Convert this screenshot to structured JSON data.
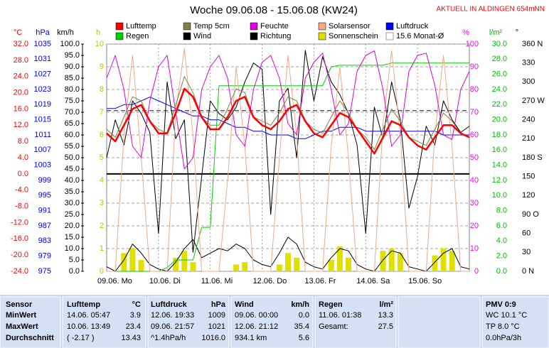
{
  "chart_data": {
    "type": "line",
    "title": "Woche 09.06.08 - 15.06.08 (KW24)",
    "subtitle": "AKTUELL IN ALDINGEN 654mNN",
    "x": [
      0,
      4,
      8,
      12,
      16,
      20,
      24,
      28,
      32,
      36,
      40,
      44,
      48,
      52,
      56,
      60,
      64,
      68,
      72,
      76,
      80,
      84,
      88,
      92,
      96,
      100,
      104,
      108,
      112,
      116,
      120,
      124,
      128,
      132,
      136,
      140,
      144,
      148,
      152,
      156,
      160,
      164,
      168
    ],
    "xlim": [
      0,
      168
    ],
    "xticks": [
      {
        "value": 0,
        "label": "09.06. Mo"
      },
      {
        "value": 24,
        "label": "10.06. Di"
      },
      {
        "value": 48,
        "label": "11.06. Mi"
      },
      {
        "value": 72,
        "label": "12.06. Do"
      },
      {
        "value": 96,
        "label": "13.06. Fr"
      },
      {
        "value": 120,
        "label": "14.06. Sa"
      },
      {
        "value": 144,
        "label": "15.06. So"
      }
    ],
    "grid": true,
    "axes": [
      {
        "unit": "°C",
        "color": "#ff0000",
        "lim": [
          -24,
          32
        ],
        "ticks": [
          {
            "value": 32,
            "label": "32.0"
          },
          {
            "value": 28,
            "label": "28.0"
          },
          {
            "value": 24,
            "label": "24.0"
          },
          {
            "value": 20,
            "label": "20.0"
          },
          {
            "value": 16,
            "label": "16.0"
          },
          {
            "value": 12,
            "label": "12.0"
          },
          {
            "value": 8,
            "label": "8.0"
          },
          {
            "value": 4,
            "label": "4.0"
          },
          {
            "value": 0,
            "label": "0.0"
          },
          {
            "value": -4,
            "label": "-4.0"
          },
          {
            "value": -8,
            "label": "-8.0"
          },
          {
            "value": -12,
            "label": "-12.0"
          },
          {
            "value": -16,
            "label": "-16.0"
          },
          {
            "value": -20,
            "label": "-20.0"
          },
          {
            "value": -24,
            "label": "-24.0"
          }
        ]
      },
      {
        "unit": "hPa",
        "color": "#0000ff",
        "lim": [
          975,
          1035
        ],
        "ticks": [
          1035,
          1031,
          1027,
          1023,
          1019,
          1015,
          1011,
          1007,
          1003,
          999,
          995,
          991,
          987,
          983,
          979,
          975
        ]
      },
      {
        "unit": "km/h",
        "color": "#000000",
        "lim": [
          0,
          100
        ],
        "ticks": [
          {
            "value": 100,
            "label": "100.0"
          },
          {
            "value": 95,
            "label": "95.0"
          },
          {
            "value": 90,
            "label": "90.0"
          },
          {
            "value": 85,
            "label": "85.0"
          },
          {
            "value": 80,
            "label": "80.0"
          },
          {
            "value": 75,
            "label": "75.0"
          },
          {
            "value": 70,
            "label": "70.0"
          },
          {
            "value": 65,
            "label": "65.0"
          },
          {
            "value": 60,
            "label": "60.0"
          },
          {
            "value": 55,
            "label": "55.0"
          },
          {
            "value": 50,
            "label": "50.0"
          },
          {
            "value": 45,
            "label": "45.0"
          },
          {
            "value": 40,
            "label": "40.0"
          },
          {
            "value": 35,
            "label": "35.0"
          },
          {
            "value": 30,
            "label": "30.0"
          },
          {
            "value": 25,
            "label": "25.0"
          },
          {
            "value": 20,
            "label": "20.0"
          },
          {
            "value": 15,
            "label": "15.0"
          },
          {
            "value": 10,
            "label": "10.0"
          },
          {
            "value": 5,
            "label": "5.0"
          },
          {
            "value": 0,
            "label": "0.0"
          }
        ]
      },
      {
        "unit": "h",
        "color": "#c0c000",
        "lim": [
          0,
          10
        ],
        "ticks": [
          10,
          9,
          8,
          7,
          6,
          5,
          4,
          3,
          2,
          1,
          0
        ]
      },
      {
        "unit": "%",
        "color": "#ff00ff",
        "lim": [
          0,
          100
        ],
        "ticks": [
          100,
          90,
          80,
          70,
          60,
          50,
          40,
          30,
          20,
          10,
          0
        ]
      },
      {
        "unit": "l/m²",
        "color": "#00c000",
        "lim": [
          0,
          30
        ],
        "ticks": [
          {
            "value": 30,
            "label": "30.0"
          },
          {
            "value": 28,
            "label": "28.0"
          },
          {
            "value": 26,
            "label": "26.0"
          },
          {
            "value": 24,
            "label": "24.0"
          },
          {
            "value": 22,
            "label": "22.0"
          },
          {
            "value": 20,
            "label": "20.0"
          },
          {
            "value": 18,
            "label": "18.0"
          },
          {
            "value": 16,
            "label": "16.0"
          },
          {
            "value": 14,
            "label": "14.0"
          },
          {
            "value": 12,
            "label": "12.0"
          },
          {
            "value": 10,
            "label": "10.0"
          },
          {
            "value": 8,
            "label": "8.0"
          },
          {
            "value": 6,
            "label": "6.0"
          },
          {
            "value": 4,
            "label": "4.0"
          },
          {
            "value": 2,
            "label": "2.0"
          },
          {
            "value": 0,
            "label": "0.0"
          }
        ]
      },
      {
        "unit": "°",
        "color": "#000000",
        "lim": [
          0,
          360
        ],
        "ticks": [
          {
            "value": 360,
            "label": "360 N"
          },
          330,
          300,
          {
            "value": 270,
            "label": "270 W"
          },
          240,
          210,
          {
            "value": 180,
            "label": "180 S"
          },
          150,
          120,
          {
            "value": 90,
            "label": "90 O"
          },
          60,
          30,
          {
            "value": 0,
            "label": "0 N"
          }
        ]
      }
    ],
    "series": [
      {
        "name": "Lufttemp",
        "color": "#ff0000",
        "axis": 0,
        "kind": "line",
        "values": [
          10,
          8,
          12,
          16,
          17,
          13,
          10,
          10,
          15,
          21,
          19,
          14,
          11,
          11,
          14,
          18,
          19,
          14,
          12,
          11,
          13,
          16,
          17,
          13,
          10,
          9,
          12,
          15,
          14,
          11,
          8,
          5,
          9,
          13,
          12,
          9,
          7,
          6,
          9,
          12,
          12,
          10,
          9
        ]
      },
      {
        "name": "Temp 5cm",
        "color": "#808040",
        "axis": 0,
        "kind": "line",
        "values": [
          11,
          9,
          14,
          19,
          18,
          13,
          11,
          10,
          17,
          24,
          20,
          14,
          12,
          12,
          16,
          21,
          20,
          14,
          13,
          12,
          15,
          19,
          18,
          13,
          11,
          10,
          14,
          18,
          15,
          11,
          9,
          6,
          11,
          16,
          13,
          9,
          8,
          7,
          11,
          15,
          13,
          10,
          9
        ]
      },
      {
        "name": "Feuchte",
        "color": "#e000e0",
        "axis": 4,
        "kind": "line",
        "values": [
          85,
          95,
          80,
          55,
          50,
          75,
          90,
          95,
          70,
          45,
          50,
          80,
          90,
          95,
          85,
          60,
          55,
          80,
          92,
          95,
          85,
          65,
          60,
          85,
          92,
          96,
          80,
          60,
          65,
          88,
          95,
          97,
          80,
          55,
          60,
          88,
          95,
          96,
          82,
          60,
          58,
          80,
          88
        ]
      },
      {
        "name": "Solarsensor",
        "color": "#f4a888",
        "axis": 4,
        "kind": "line",
        "values": [
          0,
          0,
          60,
          95,
          50,
          0,
          0,
          0,
          70,
          98,
          60,
          0,
          0,
          0,
          40,
          90,
          55,
          0,
          0,
          0,
          50,
          95,
          60,
          0,
          0,
          0,
          55,
          90,
          50,
          0,
          0,
          0,
          65,
          97,
          60,
          0,
          0,
          0,
          60,
          95,
          55,
          0,
          0
        ]
      },
      {
        "name": "Luftdruck",
        "color": "#0000ff",
        "axis": 1,
        "kind": "line",
        "values": [
          1018,
          1018,
          1019,
          1019,
          1020,
          1021,
          1020,
          1019,
          1018,
          1017,
          1016,
          1016,
          1015,
          1015,
          1014,
          1013,
          1013,
          1012,
          1012,
          1011,
          1011,
          1011,
          1010,
          1010,
          1011,
          1012,
          1012,
          1013,
          1013,
          1013,
          1012,
          1012,
          1012,
          1012,
          1012,
          1012,
          1012,
          1012,
          1012,
          1011,
          1011,
          1011,
          1011
        ]
      },
      {
        "name": "Regen",
        "color": "#00d000",
        "axis": 5,
        "kind": "line",
        "values": [
          0,
          0,
          0,
          0,
          0,
          0,
          0,
          0.5,
          1.5,
          1.5,
          1.5,
          5.8,
          5.8,
          24.5,
          24.5,
          24.5,
          24.5,
          24.5,
          24.5,
          24.5,
          24.5,
          24.5,
          24.5,
          24.5,
          24.5,
          24.5,
          27.0,
          27.2,
          27.2,
          27.2,
          27.2,
          27.2,
          27.2,
          27.5,
          27.5,
          27.5,
          27.5,
          27.5,
          27.5,
          27.5,
          27.5,
          27.5,
          27.5
        ]
      },
      {
        "name": "Wind",
        "color": "#000000",
        "axis": 2,
        "kind": "line",
        "values": [
          2,
          0,
          5,
          12,
          8,
          3,
          1,
          0,
          4,
          10,
          14,
          6,
          8,
          10,
          9,
          12,
          10,
          5,
          3,
          2,
          8,
          15,
          12,
          4,
          2,
          1,
          6,
          10,
          9,
          3,
          1,
          0,
          5,
          9,
          8,
          2,
          1,
          0,
          4,
          8,
          10,
          2,
          1
        ]
      },
      {
        "name": "Richtung",
        "color": "#000000",
        "axis": 6,
        "kind": "line",
        "values": [
          180,
          240,
          200,
          270,
          250,
          220,
          60,
          300,
          210,
          240,
          30,
          150,
          270,
          250,
          240,
          260,
          300,
          330,
          320,
          90,
          270,
          290,
          180,
          350,
          270,
          340,
          300,
          280,
          250,
          200,
          60,
          260,
          210,
          300,
          240,
          100,
          150,
          230,
          200,
          270,
          240,
          220,
          230
        ]
      },
      {
        "name": "Sonnenschein",
        "color": "#e0e000",
        "axis": 3,
        "kind": "bar",
        "values": [
          0,
          0,
          0.8,
          1.0,
          0.5,
          0,
          0,
          0,
          0.6,
          0.9,
          0.4,
          0,
          0,
          0,
          0,
          0.3,
          0.4,
          0,
          0,
          0,
          0.3,
          0.8,
          0.6,
          0,
          0,
          0,
          0.5,
          1.1,
          0.6,
          0,
          0,
          0,
          0.9,
          1.0,
          0.8,
          0,
          0,
          0,
          0.7,
          1.0,
          0.9,
          0,
          0
        ]
      }
    ],
    "reference_line": {
      "name": "15.6 Monat-Ø",
      "value": 15.6,
      "axis": 0,
      "color": "#404040"
    }
  },
  "table": {
    "header": [
      "Sensor",
      "Lufttemp",
      "°C",
      "Luftdruck",
      "hPa",
      "Wind",
      "km/h",
      "Regen",
      "l/m²",
      "PMV 0:9"
    ],
    "rows": [
      {
        "label": "MinWert",
        "lufttemp": [
          "14.06. 05:47",
          "3.9"
        ],
        "luftdruck": [
          "12.06. 19:33",
          "1009"
        ],
        "wind": [
          "09.06. 00:00",
          "0.0"
        ],
        "regen": [
          "11.06. 01:38",
          "13.3"
        ],
        "pmv": "WC 10.1 °C"
      },
      {
        "label": "MaxWert",
        "lufttemp": [
          "10.06. 13:49",
          "23.4"
        ],
        "luftdruck": [
          "09.06. 21:57",
          "1021"
        ],
        "wind": [
          "12.06. 21:12",
          "35.4"
        ],
        "regen": [
          "Gesamt:",
          "27.5"
        ],
        "pmv": "TP 8.0 °C"
      },
      {
        "label": "Durchschnitt",
        "lufttemp": [
          "( -2.17 )",
          "13.43"
        ],
        "luftdruck": [
          "^1.4hPa/h",
          "1016.0"
        ],
        "wind": [
          "934.1 km",
          "5.6"
        ],
        "pmv": "0.0hPa/3h"
      }
    ]
  }
}
